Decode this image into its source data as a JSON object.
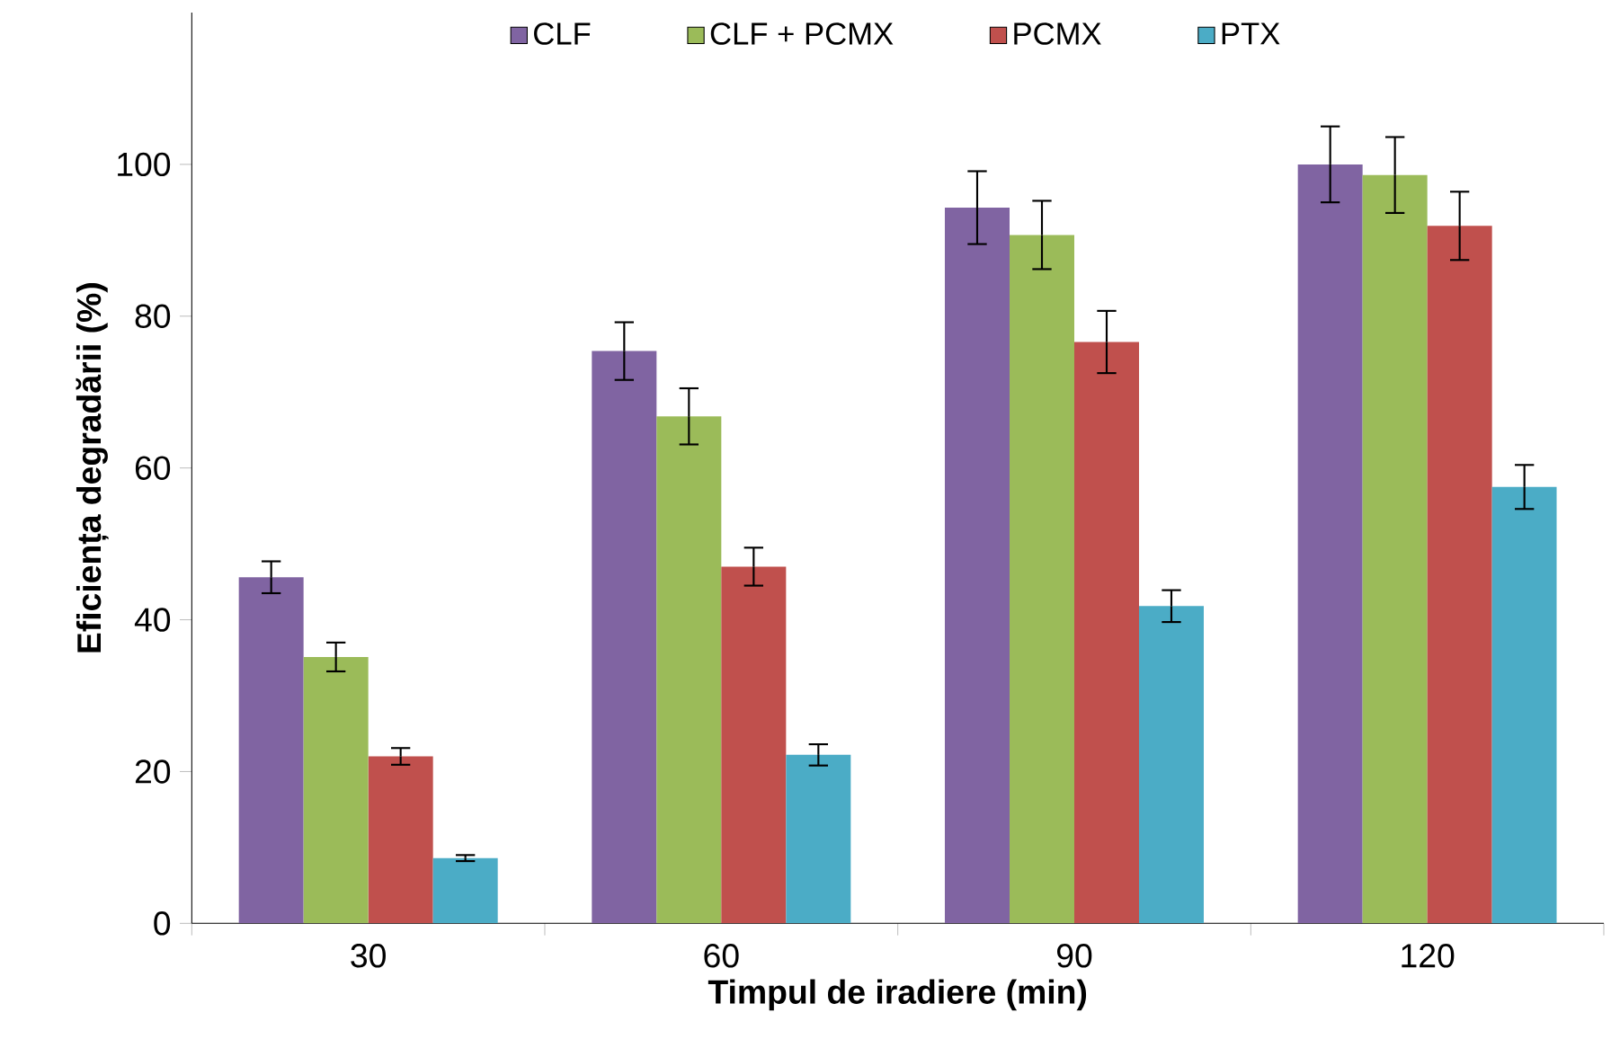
{
  "chart_data": {
    "type": "bar",
    "xlabel": "Timpul de iradiere (min)",
    "ylabel": "Eficiența degradării (%)",
    "categories": [
      "30",
      "60",
      "90",
      "120"
    ],
    "series": [
      {
        "name": "CLF",
        "color": "#8064a2",
        "values": [
          45.6,
          75.4,
          94.3,
          100.0
        ],
        "errors": [
          2.1,
          3.8,
          4.8,
          5.0
        ]
      },
      {
        "name": "CLF + PCMX",
        "color": "#9bbb59",
        "values": [
          35.1,
          66.8,
          90.7,
          98.6
        ],
        "errors": [
          1.9,
          3.7,
          4.5,
          5.0
        ]
      },
      {
        "name": "PCMX",
        "color": "#c0504d",
        "values": [
          22.0,
          47.0,
          76.6,
          91.9
        ],
        "errors": [
          1.1,
          2.5,
          4.1,
          4.5
        ]
      },
      {
        "name": "PTX",
        "color": "#4bacc6",
        "values": [
          8.6,
          22.2,
          41.8,
          57.5
        ],
        "errors": [
          0.4,
          1.4,
          2.1,
          2.9
        ]
      }
    ],
    "ylim": [
      0,
      120
    ],
    "yticks": [
      0,
      20,
      40,
      60,
      80,
      100
    ],
    "grid": false,
    "legend": "top"
  }
}
